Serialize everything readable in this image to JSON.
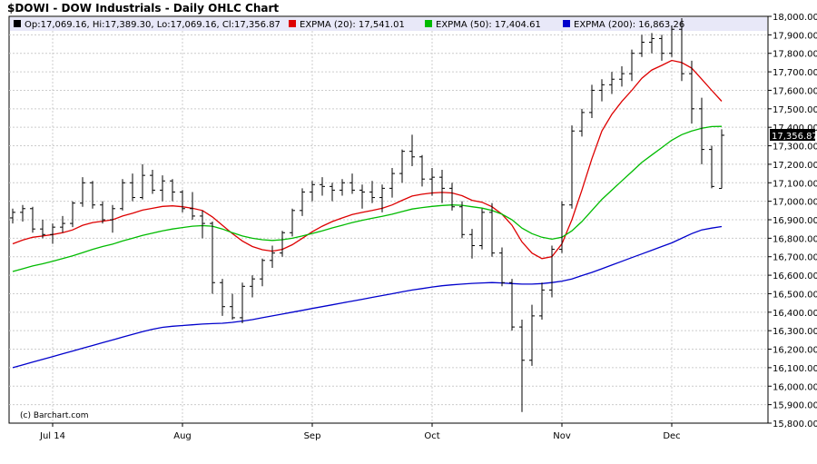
{
  "chart_data": {
    "type": "ohlc",
    "title": "$DOWI - DOW Industrials - Daily OHLC Chart",
    "source_credit": "(c) Barchart.com",
    "header": {
      "ohlc_text": "Op:17,069.16, Hi:17,389.30, Lo:17,069.16, Cl:17,356.87",
      "last_price_label": "17,356.87"
    },
    "legend": [
      {
        "label": "EXPMA (20): 17,541.01",
        "color": "#dd0000"
      },
      {
        "label": "EXPMA (50): 17,404.61",
        "color": "#00bb00"
      },
      {
        "label": "EXPMA (200): 16,863.26",
        "color": "#0000cc"
      }
    ],
    "colors": {
      "bars": "#000000",
      "grid": "#cccccc",
      "header_bg": "#e8e8f8"
    },
    "ylim": [
      15800,
      18000
    ],
    "y_ticks": [
      15800,
      15900,
      16000,
      16100,
      16200,
      16300,
      16400,
      16500,
      16600,
      16700,
      16800,
      16900,
      17000,
      17100,
      17200,
      17300,
      17400,
      17500,
      17600,
      17700,
      17800,
      17900,
      18000
    ],
    "y_tick_labels": [
      "15,800.00",
      "15,900.00",
      "16,000.00",
      "16,100.00",
      "16,200.00",
      "16,300.00",
      "16,400.00",
      "16,500.00",
      "16,600.00",
      "16,700.00",
      "16,800.00",
      "16,900.00",
      "17,000.00",
      "17,100.00",
      "17,200.00",
      "17,300.00",
      "17,400.00",
      "17,500.00",
      "17,600.00",
      "17,700.00",
      "17,800.00",
      "17,900.00",
      "18,000.00"
    ],
    "x_ticks": [
      {
        "label": "Jul 14",
        "index": 4
      },
      {
        "label": "Aug",
        "index": 17
      },
      {
        "label": "Sep",
        "index": 30
      },
      {
        "label": "Oct",
        "index": 42
      },
      {
        "label": "Nov",
        "index": 55
      },
      {
        "label": "Dec",
        "index": 66
      }
    ],
    "bars": [
      {
        "o": 16910,
        "h": 16960,
        "l": 16880,
        "c": 16940
      },
      {
        "o": 16940,
        "h": 16980,
        "l": 16890,
        "c": 16960
      },
      {
        "o": 16960,
        "h": 16970,
        "l": 16830,
        "c": 16850
      },
      {
        "o": 16850,
        "h": 16900,
        "l": 16800,
        "c": 16820
      },
      {
        "o": 16820,
        "h": 16880,
        "l": 16770,
        "c": 16860
      },
      {
        "o": 16860,
        "h": 16920,
        "l": 16830,
        "c": 16880
      },
      {
        "o": 16880,
        "h": 17000,
        "l": 16860,
        "c": 16990
      },
      {
        "o": 16990,
        "h": 17130,
        "l": 16970,
        "c": 17100
      },
      {
        "o": 17100,
        "h": 17110,
        "l": 16960,
        "c": 16980
      },
      {
        "o": 16980,
        "h": 17000,
        "l": 16880,
        "c": 16900
      },
      {
        "o": 16900,
        "h": 16980,
        "l": 16830,
        "c": 16960
      },
      {
        "o": 16960,
        "h": 17120,
        "l": 16950,
        "c": 17100
      },
      {
        "o": 17100,
        "h": 17150,
        "l": 17000,
        "c": 17020
      },
      {
        "o": 17020,
        "h": 17200,
        "l": 17010,
        "c": 17140
      },
      {
        "o": 17140,
        "h": 17170,
        "l": 17040,
        "c": 17060
      },
      {
        "o": 17060,
        "h": 17140,
        "l": 17000,
        "c": 17110
      },
      {
        "o": 17110,
        "h": 17120,
        "l": 17000,
        "c": 17050
      },
      {
        "o": 17050,
        "h": 17060,
        "l": 16940,
        "c": 16960
      },
      {
        "o": 16960,
        "h": 17050,
        "l": 16900,
        "c": 16920
      },
      {
        "o": 16920,
        "h": 16950,
        "l": 16800,
        "c": 16880
      },
      {
        "o": 16880,
        "h": 16890,
        "l": 16500,
        "c": 16560
      },
      {
        "o": 16560,
        "h": 16580,
        "l": 16380,
        "c": 16430
      },
      {
        "o": 16430,
        "h": 16500,
        "l": 16360,
        "c": 16370
      },
      {
        "o": 16370,
        "h": 16560,
        "l": 16340,
        "c": 16540
      },
      {
        "o": 16540,
        "h": 16600,
        "l": 16480,
        "c": 16580
      },
      {
        "o": 16580,
        "h": 16690,
        "l": 16540,
        "c": 16680
      },
      {
        "o": 16680,
        "h": 16760,
        "l": 16640,
        "c": 16720
      },
      {
        "o": 16720,
        "h": 16840,
        "l": 16700,
        "c": 16830
      },
      {
        "o": 16830,
        "h": 16960,
        "l": 16810,
        "c": 16950
      },
      {
        "o": 16950,
        "h": 17070,
        "l": 16920,
        "c": 17050
      },
      {
        "o": 17050,
        "h": 17110,
        "l": 17000,
        "c": 17090
      },
      {
        "o": 17090,
        "h": 17130,
        "l": 17030,
        "c": 17080
      },
      {
        "o": 17080,
        "h": 17100,
        "l": 17000,
        "c": 17060
      },
      {
        "o": 17060,
        "h": 17120,
        "l": 17030,
        "c": 17100
      },
      {
        "o": 17100,
        "h": 17150,
        "l": 17040,
        "c": 17060
      },
      {
        "o": 17060,
        "h": 17090,
        "l": 16960,
        "c": 17050
      },
      {
        "o": 17050,
        "h": 17110,
        "l": 16990,
        "c": 17020
      },
      {
        "o": 17020,
        "h": 17090,
        "l": 16940,
        "c": 17070
      },
      {
        "o": 17070,
        "h": 17180,
        "l": 17020,
        "c": 17150
      },
      {
        "o": 17150,
        "h": 17280,
        "l": 17100,
        "c": 17270
      },
      {
        "o": 17270,
        "h": 17360,
        "l": 17190,
        "c": 17240
      },
      {
        "o": 17240,
        "h": 17250,
        "l": 17080,
        "c": 17120
      },
      {
        "o": 17120,
        "h": 17180,
        "l": 17030,
        "c": 17130
      },
      {
        "o": 17130,
        "h": 17170,
        "l": 16990,
        "c": 17070
      },
      {
        "o": 17070,
        "h": 17100,
        "l": 16950,
        "c": 16970
      },
      {
        "o": 16970,
        "h": 17000,
        "l": 16800,
        "c": 16820
      },
      {
        "o": 16820,
        "h": 16850,
        "l": 16690,
        "c": 16760
      },
      {
        "o": 16760,
        "h": 16960,
        "l": 16740,
        "c": 16940
      },
      {
        "o": 16940,
        "h": 16990,
        "l": 16700,
        "c": 16720
      },
      {
        "o": 16720,
        "h": 16750,
        "l": 16540,
        "c": 16560
      },
      {
        "o": 16560,
        "h": 16580,
        "l": 16300,
        "c": 16320
      },
      {
        "o": 16320,
        "h": 16360,
        "l": 15860,
        "c": 16140
      },
      {
        "o": 16140,
        "h": 16440,
        "l": 16110,
        "c": 16380
      },
      {
        "o": 16380,
        "h": 16560,
        "l": 16360,
        "c": 16520
      },
      {
        "o": 16520,
        "h": 16760,
        "l": 16480,
        "c": 16740
      },
      {
        "o": 16740,
        "h": 17000,
        "l": 16720,
        "c": 16980
      },
      {
        "o": 16980,
        "h": 17410,
        "l": 16960,
        "c": 17380
      },
      {
        "o": 17380,
        "h": 17500,
        "l": 17350,
        "c": 17480
      },
      {
        "o": 17480,
        "h": 17630,
        "l": 17450,
        "c": 17600
      },
      {
        "o": 17600,
        "h": 17660,
        "l": 17540,
        "c": 17630
      },
      {
        "o": 17630,
        "h": 17700,
        "l": 17580,
        "c": 17660
      },
      {
        "o": 17660,
        "h": 17730,
        "l": 17620,
        "c": 17690
      },
      {
        "o": 17690,
        "h": 17820,
        "l": 17650,
        "c": 17800
      },
      {
        "o": 17800,
        "h": 17900,
        "l": 17780,
        "c": 17860
      },
      {
        "o": 17860,
        "h": 17910,
        "l": 17800,
        "c": 17880
      },
      {
        "o": 17880,
        "h": 17900,
        "l": 17760,
        "c": 17800
      },
      {
        "o": 17800,
        "h": 17950,
        "l": 17780,
        "c": 17930
      },
      {
        "o": 17930,
        "h": 17990,
        "l": 17650,
        "c": 17690
      },
      {
        "o": 17690,
        "h": 17760,
        "l": 17420,
        "c": 17500
      },
      {
        "o": 17500,
        "h": 17560,
        "l": 17200,
        "c": 17280
      },
      {
        "o": 17280,
        "h": 17300,
        "l": 17070,
        "c": 17080
      },
      {
        "o": 17069.16,
        "h": 17389.3,
        "l": 17069.16,
        "c": 17356.87
      }
    ],
    "series": [
      {
        "name": "EXPMA (20)",
        "color": "#dd0000",
        "values": [
          16770,
          16790,
          16805,
          16812,
          16820,
          16830,
          16845,
          16870,
          16885,
          16892,
          16900,
          16920,
          16935,
          16952,
          16962,
          16972,
          16975,
          16970,
          16962,
          16950,
          16915,
          16870,
          16825,
          16785,
          16755,
          16738,
          16730,
          16740,
          16765,
          16800,
          16835,
          16865,
          16890,
          16910,
          16928,
          16940,
          16950,
          16962,
          16980,
          17005,
          17028,
          17038,
          17045,
          17048,
          17045,
          17030,
          17005,
          16995,
          16970,
          16930,
          16870,
          16780,
          16720,
          16690,
          16700,
          16770,
          16900,
          17060,
          17230,
          17380,
          17470,
          17540,
          17600,
          17665,
          17710,
          17735,
          17762,
          17750,
          17720,
          17660,
          17600,
          17541.01
        ]
      },
      {
        "name": "EXPMA (50)",
        "color": "#00bb00",
        "values": [
          16620,
          16635,
          16650,
          16662,
          16675,
          16690,
          16705,
          16722,
          16740,
          16755,
          16768,
          16785,
          16800,
          16815,
          16828,
          16840,
          16850,
          16858,
          16865,
          16868,
          16865,
          16850,
          16830,
          16812,
          16800,
          16792,
          16788,
          16792,
          16800,
          16812,
          16826,
          16840,
          16856,
          16870,
          16885,
          16897,
          16908,
          16918,
          16930,
          16944,
          16958,
          16966,
          16972,
          16977,
          16980,
          16978,
          16970,
          16963,
          16950,
          16930,
          16900,
          16855,
          16825,
          16805,
          16795,
          16805,
          16840,
          16890,
          16950,
          17010,
          17060,
          17110,
          17160,
          17210,
          17250,
          17290,
          17330,
          17360,
          17380,
          17395,
          17404,
          17404.61
        ]
      },
      {
        "name": "EXPMA (200)",
        "color": "#0000cc",
        "values": [
          16100,
          16115,
          16130,
          16145,
          16160,
          16175,
          16190,
          16205,
          16220,
          16235,
          16250,
          16265,
          16280,
          16295,
          16308,
          16318,
          16324,
          16328,
          16332,
          16336,
          16338,
          16340,
          16345,
          16352,
          16360,
          16370,
          16380,
          16390,
          16400,
          16410,
          16420,
          16430,
          16440,
          16450,
          16460,
          16470,
          16480,
          16490,
          16500,
          16510,
          16520,
          16528,
          16536,
          16543,
          16548,
          16552,
          16556,
          16558,
          16560,
          16558,
          16555,
          16552,
          16552,
          16555,
          16560,
          16568,
          16580,
          16598,
          16615,
          16635,
          16655,
          16675,
          16695,
          16715,
          16735,
          16755,
          16775,
          16800,
          16825,
          16845,
          16855,
          16863.26
        ]
      }
    ]
  }
}
